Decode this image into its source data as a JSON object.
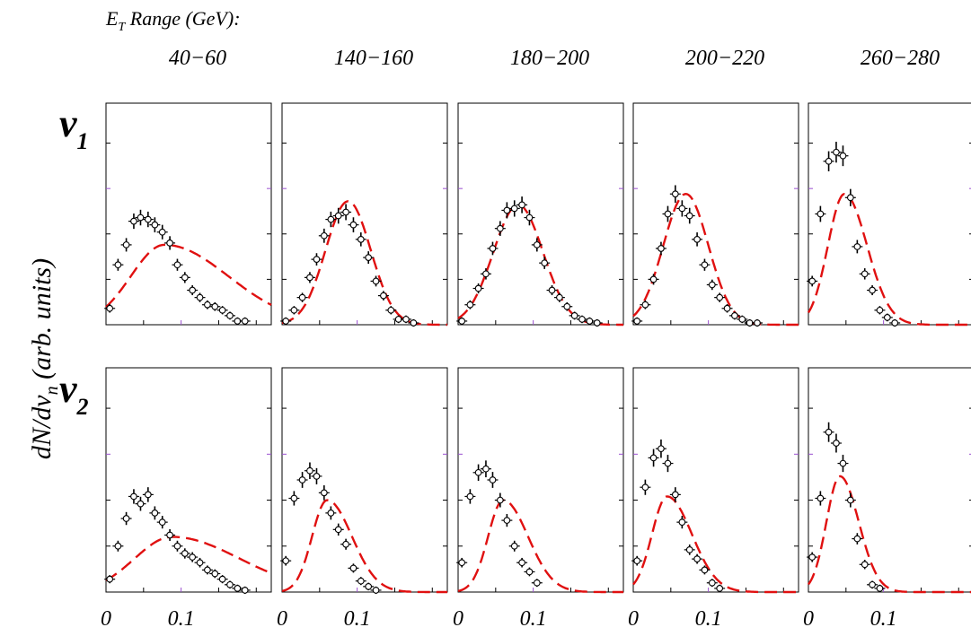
{
  "chart_data": {
    "type": "scatter",
    "header": {
      "et_symbol": "E",
      "et_sub": "T",
      "et_rest": " Range (GeV):"
    },
    "ylabel": {
      "main": "dN/dv",
      "sub": "n",
      "rest": " (arb. units)"
    },
    "row_labels": [
      {
        "main": "v",
        "sub": "1"
      },
      {
        "main": "v",
        "sub": "2"
      }
    ],
    "x_ticks": [
      {
        "value": 0,
        "label": "0"
      },
      {
        "value": 0.1,
        "label": "0.1"
      }
    ],
    "xlim": [
      0,
      0.22
    ],
    "ylim": [
      0,
      1.22
    ],
    "grid": false,
    "legend": "none",
    "colors": {
      "model_curve": "#e01010",
      "data_marker": "#000000",
      "minor_tick": "#9a4fd0"
    },
    "panels": [
      {
        "range": "40−60",
        "v1": {
          "points": [
            [
              0.005,
              0.09
            ],
            [
              0.016,
              0.33
            ],
            [
              0.027,
              0.44
            ],
            [
              0.037,
              0.57
            ],
            [
              0.046,
              0.59
            ],
            [
              0.056,
              0.58
            ],
            [
              0.065,
              0.55
            ],
            [
              0.075,
              0.51
            ],
            [
              0.085,
              0.45
            ],
            [
              0.095,
              0.33
            ],
            [
              0.105,
              0.26
            ],
            [
              0.115,
              0.19
            ],
            [
              0.125,
              0.15
            ],
            [
              0.135,
              0.11
            ],
            [
              0.145,
              0.1
            ],
            [
              0.155,
              0.08
            ],
            [
              0.165,
              0.05
            ],
            [
              0.175,
              0.02
            ],
            [
              0.185,
              0.02
            ]
          ],
          "curve": {
            "peak_x": 0.078,
            "peak_y": 0.44,
            "width_left": 0.045,
            "width_right": 0.085
          }
        },
        "v2": {
          "points": [
            [
              0.005,
              0.07
            ],
            [
              0.016,
              0.25
            ],
            [
              0.027,
              0.4
            ],
            [
              0.037,
              0.52
            ],
            [
              0.046,
              0.48
            ],
            [
              0.056,
              0.53
            ],
            [
              0.065,
              0.43
            ],
            [
              0.075,
              0.38
            ],
            [
              0.085,
              0.31
            ],
            [
              0.095,
              0.25
            ],
            [
              0.105,
              0.21
            ],
            [
              0.115,
              0.19
            ],
            [
              0.125,
              0.16
            ],
            [
              0.135,
              0.12
            ],
            [
              0.145,
              0.1
            ],
            [
              0.155,
              0.07
            ],
            [
              0.165,
              0.04
            ],
            [
              0.175,
              0.02
            ],
            [
              0.185,
              0.01
            ]
          ],
          "curve": {
            "peak_x": 0.088,
            "peak_y": 0.3,
            "width_left": 0.05,
            "width_right": 0.09
          }
        }
      },
      {
        "range": "140−160",
        "v1": {
          "points": [
            [
              0.005,
              0.02
            ],
            [
              0.016,
              0.08
            ],
            [
              0.027,
              0.15
            ],
            [
              0.037,
              0.26
            ],
            [
              0.046,
              0.36
            ],
            [
              0.056,
              0.49
            ],
            [
              0.065,
              0.58
            ],
            [
              0.075,
              0.6
            ],
            [
              0.085,
              0.62
            ],
            [
              0.095,
              0.55
            ],
            [
              0.105,
              0.47
            ],
            [
              0.115,
              0.37
            ],
            [
              0.125,
              0.24
            ],
            [
              0.135,
              0.16
            ],
            [
              0.145,
              0.08
            ],
            [
              0.155,
              0.03
            ],
            [
              0.165,
              0.03
            ],
            [
              0.175,
              0.01
            ]
          ],
          "curve": {
            "peak_x": 0.088,
            "peak_y": 0.68,
            "width_left": 0.03,
            "width_right": 0.03
          }
        },
        "v2": {
          "points": [
            [
              0.005,
              0.17
            ],
            [
              0.016,
              0.51
            ],
            [
              0.027,
              0.61
            ],
            [
              0.037,
              0.66
            ],
            [
              0.046,
              0.63
            ],
            [
              0.056,
              0.54
            ],
            [
              0.065,
              0.43
            ],
            [
              0.075,
              0.34
            ],
            [
              0.085,
              0.26
            ],
            [
              0.095,
              0.13
            ],
            [
              0.105,
              0.06
            ],
            [
              0.115,
              0.03
            ],
            [
              0.125,
              0.01
            ]
          ],
          "curve": {
            "peak_x": 0.06,
            "peak_y": 0.5,
            "width_left": 0.02,
            "width_right": 0.033
          }
        }
      },
      {
        "range": "180−200",
        "v1": {
          "points": [
            [
              0.005,
              0.02
            ],
            [
              0.016,
              0.11
            ],
            [
              0.027,
              0.2
            ],
            [
              0.037,
              0.28
            ],
            [
              0.046,
              0.42
            ],
            [
              0.056,
              0.53
            ],
            [
              0.065,
              0.63
            ],
            [
              0.075,
              0.64
            ],
            [
              0.085,
              0.66
            ],
            [
              0.095,
              0.59
            ],
            [
              0.105,
              0.44
            ],
            [
              0.115,
              0.34
            ],
            [
              0.125,
              0.19
            ],
            [
              0.135,
              0.15
            ],
            [
              0.145,
              0.1
            ],
            [
              0.155,
              0.05
            ],
            [
              0.165,
              0.03
            ],
            [
              0.175,
              0.02
            ],
            [
              0.185,
              0.01
            ]
          ],
          "curve": {
            "peak_x": 0.08,
            "peak_y": 0.66,
            "width_left": 0.033,
            "width_right": 0.033
          }
        },
        "v2": {
          "points": [
            [
              0.005,
              0.16
            ],
            [
              0.016,
              0.52
            ],
            [
              0.027,
              0.65
            ],
            [
              0.037,
              0.67
            ],
            [
              0.046,
              0.61
            ],
            [
              0.056,
              0.5
            ],
            [
              0.065,
              0.39
            ],
            [
              0.075,
              0.25
            ],
            [
              0.085,
              0.16
            ],
            [
              0.095,
              0.11
            ],
            [
              0.105,
              0.05
            ]
          ],
          "curve": {
            "peak_x": 0.06,
            "peak_y": 0.5,
            "width_left": 0.02,
            "width_right": 0.033
          }
        }
      },
      {
        "range": "200−220",
        "v1": {
          "points": [
            [
              0.005,
              0.02
            ],
            [
              0.016,
              0.11
            ],
            [
              0.027,
              0.25
            ],
            [
              0.037,
              0.42
            ],
            [
              0.046,
              0.61
            ],
            [
              0.056,
              0.72
            ],
            [
              0.065,
              0.64
            ],
            [
              0.075,
              0.6
            ],
            [
              0.085,
              0.47
            ],
            [
              0.095,
              0.33
            ],
            [
              0.105,
              0.22
            ],
            [
              0.115,
              0.15
            ],
            [
              0.125,
              0.09
            ],
            [
              0.135,
              0.05
            ],
            [
              0.145,
              0.03
            ],
            [
              0.155,
              0.01
            ],
            [
              0.165,
              0.01
            ]
          ],
          "curve": {
            "peak_x": 0.07,
            "peak_y": 0.72,
            "width_left": 0.03,
            "width_right": 0.03
          }
        },
        "v2": {
          "points": [
            [
              0.005,
              0.17
            ],
            [
              0.016,
              0.57
            ],
            [
              0.027,
              0.73
            ],
            [
              0.037,
              0.78
            ],
            [
              0.046,
              0.7
            ],
            [
              0.056,
              0.53
            ],
            [
              0.065,
              0.38
            ],
            [
              0.075,
              0.23
            ],
            [
              0.085,
              0.18
            ],
            [
              0.095,
              0.12
            ],
            [
              0.105,
              0.05
            ],
            [
              0.115,
              0.02
            ]
          ],
          "curve": {
            "peak_x": 0.045,
            "peak_y": 0.52,
            "width_left": 0.02,
            "width_right": 0.033
          }
        }
      },
      {
        "range": "260−280",
        "v1": {
          "points": [
            [
              0.005,
              0.24
            ],
            [
              0.016,
              0.61
            ],
            [
              0.027,
              0.9
            ],
            [
              0.037,
              0.95
            ],
            [
              0.046,
              0.93
            ],
            [
              0.056,
              0.7
            ],
            [
              0.065,
              0.43
            ],
            [
              0.075,
              0.28
            ],
            [
              0.085,
              0.19
            ],
            [
              0.095,
              0.08
            ],
            [
              0.105,
              0.04
            ],
            [
              0.115,
              0.01
            ]
          ],
          "curve": {
            "peak_x": 0.048,
            "peak_y": 0.72,
            "width_left": 0.022,
            "width_right": 0.03
          }
        },
        "v2": {
          "points": [
            [
              0.005,
              0.19
            ],
            [
              0.016,
              0.51
            ],
            [
              0.027,
              0.87
            ],
            [
              0.037,
              0.81
            ],
            [
              0.046,
              0.7
            ],
            [
              0.056,
              0.5
            ],
            [
              0.065,
              0.29
            ],
            [
              0.075,
              0.15
            ],
            [
              0.085,
              0.04
            ],
            [
              0.095,
              0.02
            ]
          ],
          "curve": {
            "peak_x": 0.042,
            "peak_y": 0.63,
            "width_left": 0.018,
            "width_right": 0.025
          }
        }
      }
    ]
  }
}
